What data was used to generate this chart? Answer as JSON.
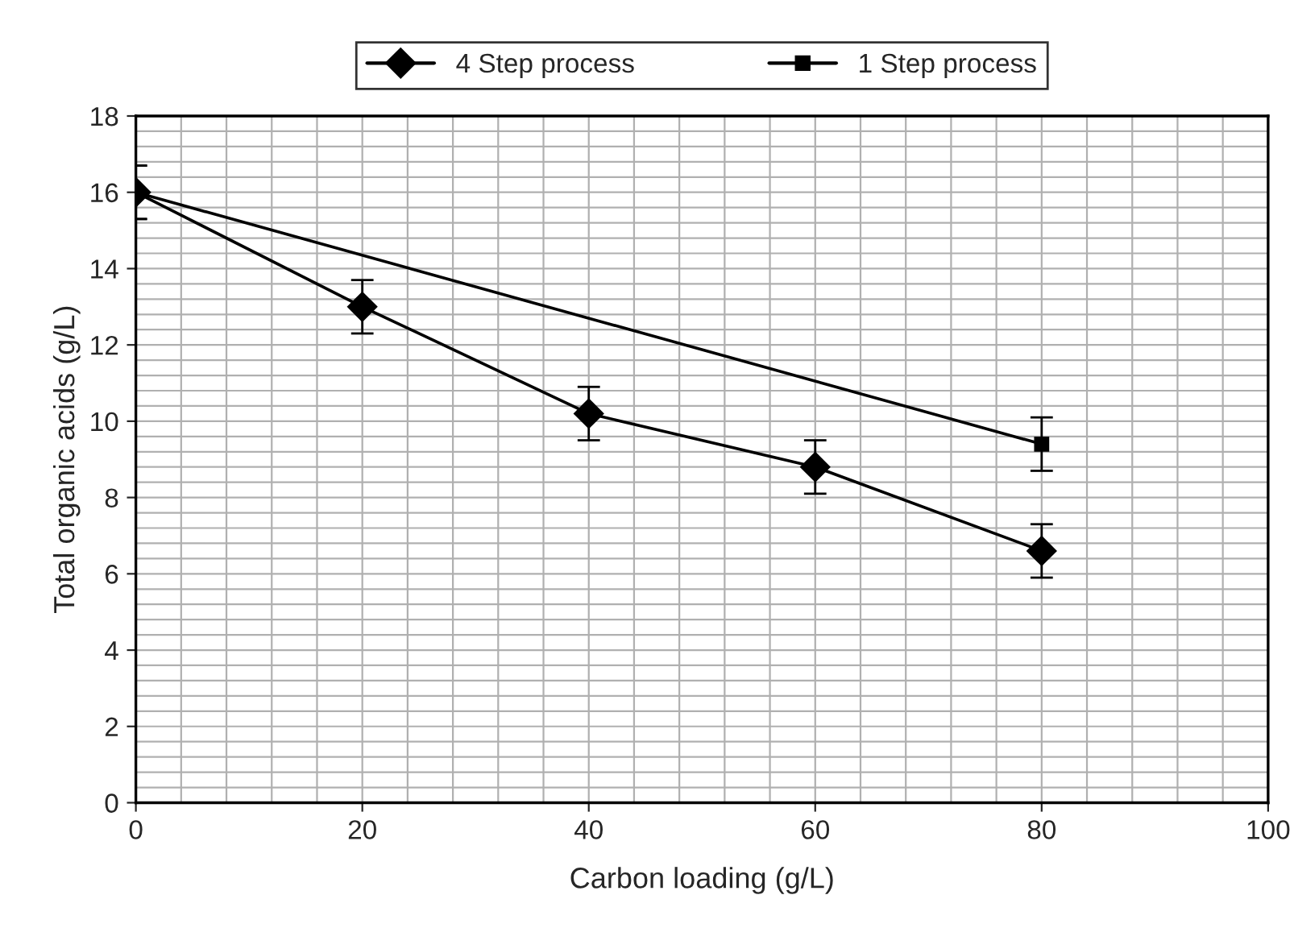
{
  "chart_data": {
    "type": "line",
    "xlabel": "Carbon loading (g/L)",
    "ylabel": "Total organic acids (g/L)",
    "series": [
      {
        "name": "4 Step process",
        "color": "#000000",
        "marker": "diamond",
        "x": [
          0,
          20,
          40,
          60,
          80
        ],
        "values": [
          16,
          13,
          10.2,
          8.8,
          6.6
        ],
        "errors": [
          0.7,
          0.7,
          0.7,
          0.7,
          0.7
        ]
      },
      {
        "name": "1 Step process",
        "color": "#000000",
        "marker": "square",
        "x": [
          0,
          80
        ],
        "values": [
          16,
          9.4
        ],
        "errors": [
          0.7,
          0.7
        ]
      }
    ],
    "xlim": [
      0,
      100
    ],
    "xticks": [
      0,
      20,
      40,
      60,
      80,
      100
    ],
    "ylim": [
      0,
      18
    ],
    "yticks": [
      0,
      2,
      4,
      6,
      8,
      10,
      12,
      14,
      16,
      18
    ],
    "grid": true,
    "legend": "top",
    "line_style": "solid"
  }
}
